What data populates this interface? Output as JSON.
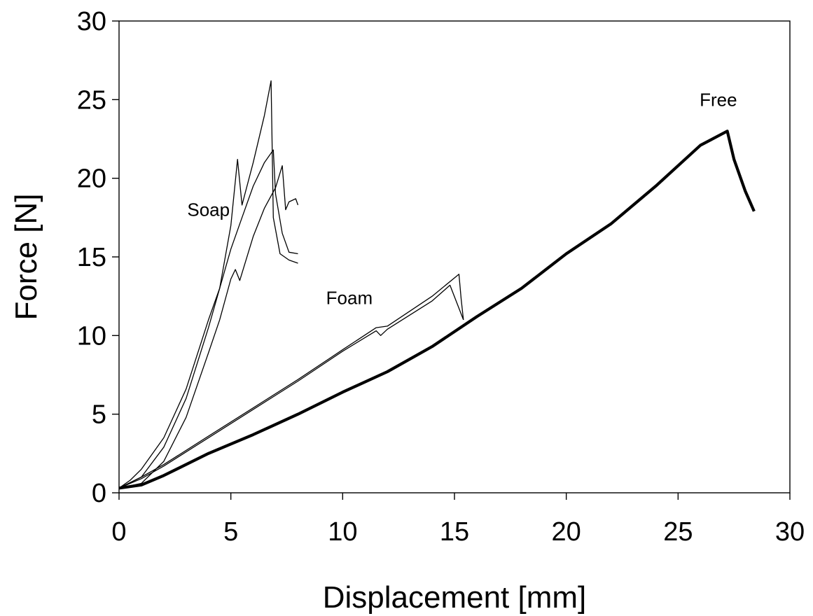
{
  "chart_data": {
    "type": "line",
    "title": "",
    "xlabel": "Displacement [mm]",
    "ylabel": "Force [N]",
    "xlim": [
      0,
      30
    ],
    "ylim": [
      0,
      30
    ],
    "xticks": [
      "0",
      "5",
      "10",
      "15",
      "20",
      "25",
      "30"
    ],
    "yticks": [
      "0",
      "5",
      "10",
      "15",
      "20",
      "25",
      "30"
    ],
    "grid": false,
    "legend": "none",
    "annotations": [
      {
        "text": "Soap",
        "x": 4.0,
        "y": 17.6
      },
      {
        "text": "Foam",
        "x": 10.3,
        "y": 12.0
      },
      {
        "text": "Free",
        "x": 26.8,
        "y": 24.6
      }
    ],
    "series": [
      {
        "group": "Free",
        "line_width": 4.2,
        "points": [
          [
            0,
            0.3
          ],
          [
            1,
            0.5
          ],
          [
            2,
            1.1
          ],
          [
            4,
            2.5
          ],
          [
            6,
            3.7
          ],
          [
            8,
            5.0
          ],
          [
            10,
            6.4
          ],
          [
            12,
            7.7
          ],
          [
            14,
            9.3
          ],
          [
            16,
            11.2
          ],
          [
            18,
            13.0
          ],
          [
            20,
            15.2
          ],
          [
            22,
            17.1
          ],
          [
            24,
            19.5
          ],
          [
            26,
            22.1
          ],
          [
            27.2,
            23.0
          ],
          [
            27.5,
            21.2
          ],
          [
            28,
            19.2
          ],
          [
            28.4,
            17.9
          ]
        ]
      },
      {
        "group": "Foam",
        "line_width": 1.3,
        "points": [
          [
            0,
            0.3
          ],
          [
            1,
            1.0
          ],
          [
            2,
            1.8
          ],
          [
            4,
            3.6
          ],
          [
            6,
            5.4
          ],
          [
            8,
            7.2
          ],
          [
            10,
            9.1
          ],
          [
            11.5,
            10.5
          ],
          [
            12,
            10.6
          ],
          [
            14,
            12.5
          ],
          [
            15.2,
            13.9
          ],
          [
            15.3,
            12.3
          ],
          [
            15.4,
            11.0
          ]
        ]
      },
      {
        "group": "Foam",
        "line_width": 1.3,
        "points": [
          [
            0,
            0.3
          ],
          [
            1,
            0.9
          ],
          [
            2,
            1.7
          ],
          [
            4,
            3.5
          ],
          [
            6,
            5.3
          ],
          [
            8,
            7.1
          ],
          [
            10,
            9.0
          ],
          [
            11.5,
            10.3
          ],
          [
            11.7,
            10.0
          ],
          [
            12,
            10.4
          ],
          [
            14,
            12.2
          ],
          [
            14.8,
            13.2
          ],
          [
            15.4,
            11.0
          ]
        ]
      },
      {
        "group": "Soap",
        "line_width": 1.3,
        "points": [
          [
            0,
            0.3
          ],
          [
            0.5,
            0.8
          ],
          [
            1,
            1.5
          ],
          [
            2,
            3.5
          ],
          [
            3,
            6.6
          ],
          [
            4,
            11.0
          ],
          [
            4.5,
            13.0
          ],
          [
            5,
            17.0
          ],
          [
            5.3,
            21.2
          ],
          [
            5.5,
            18.3
          ],
          [
            6,
            21.0
          ],
          [
            6.5,
            24.0
          ],
          [
            6.8,
            26.2
          ],
          [
            6.9,
            17.5
          ],
          [
            7.2,
            15.2
          ],
          [
            7.6,
            14.8
          ],
          [
            8.0,
            14.6
          ]
        ]
      },
      {
        "group": "Soap",
        "line_width": 1.3,
        "points": [
          [
            0,
            0.3
          ],
          [
            1,
            1.0
          ],
          [
            2,
            2.9
          ],
          [
            3,
            6.0
          ],
          [
            4,
            10.5
          ],
          [
            4.5,
            13.0
          ],
          [
            5,
            15.5
          ],
          [
            5.5,
            17.5
          ],
          [
            6,
            19.5
          ],
          [
            6.5,
            21.0
          ],
          [
            6.9,
            21.8
          ],
          [
            7.0,
            19.0
          ],
          [
            7.3,
            16.5
          ],
          [
            7.6,
            15.3
          ],
          [
            8.0,
            15.2
          ]
        ]
      },
      {
        "group": "Soap",
        "line_width": 1.3,
        "points": [
          [
            0,
            0.3
          ],
          [
            1,
            0.6
          ],
          [
            2,
            2.0
          ],
          [
            3,
            4.8
          ],
          [
            4,
            8.9
          ],
          [
            4.5,
            11.0
          ],
          [
            5,
            13.6
          ],
          [
            5.2,
            14.2
          ],
          [
            5.4,
            13.5
          ],
          [
            6,
            16.3
          ],
          [
            6.5,
            18.1
          ],
          [
            7.0,
            19.4
          ],
          [
            7.3,
            20.8
          ],
          [
            7.45,
            18.0
          ],
          [
            7.6,
            18.5
          ],
          [
            7.9,
            18.7
          ],
          [
            8.0,
            18.3
          ]
        ]
      }
    ]
  }
}
